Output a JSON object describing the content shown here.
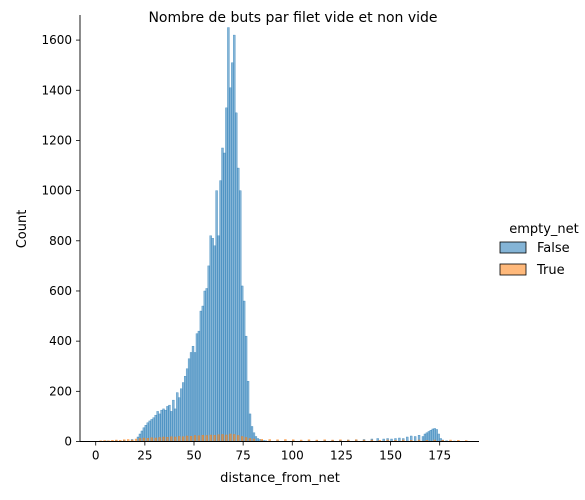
{
  "chart_data": {
    "type": "histogram",
    "title": "Nombre de buts par filet vide et non vide",
    "xlabel": "distance_from_net",
    "ylabel": "Count",
    "xlim": [
      -8,
      195
    ],
    "ylim": [
      0,
      1700
    ],
    "xticks": [
      0,
      25,
      50,
      75,
      100,
      125,
      150,
      175
    ],
    "yticks": [
      0,
      200,
      400,
      600,
      800,
      1000,
      1200,
      1400,
      1600
    ],
    "grid": false,
    "legend": {
      "title": "empty_net",
      "placement": "center-right",
      "entries": [
        "False",
        "True"
      ]
    },
    "colors": {
      "False": "#1f77b4",
      "True": "#ff7f0e",
      "opacity": 0.55
    },
    "bin_width": 1,
    "series": [
      {
        "name": "False",
        "bins": [
          {
            "x": 5,
            "y": 2
          },
          {
            "x": 10,
            "y": 3
          },
          {
            "x": 14,
            "y": 4
          },
          {
            "x": 18,
            "y": 8
          },
          {
            "x": 21,
            "y": 18
          },
          {
            "x": 22,
            "y": 30
          },
          {
            "x": 23,
            "y": 42
          },
          {
            "x": 24,
            "y": 55
          },
          {
            "x": 25,
            "y": 65
          },
          {
            "x": 26,
            "y": 75
          },
          {
            "x": 27,
            "y": 82
          },
          {
            "x": 28,
            "y": 88
          },
          {
            "x": 29,
            "y": 95
          },
          {
            "x": 30,
            "y": 105
          },
          {
            "x": 31,
            "y": 120
          },
          {
            "x": 32,
            "y": 110
          },
          {
            "x": 33,
            "y": 125
          },
          {
            "x": 34,
            "y": 130
          },
          {
            "x": 35,
            "y": 125
          },
          {
            "x": 36,
            "y": 140
          },
          {
            "x": 37,
            "y": 145
          },
          {
            "x": 38,
            "y": 120
          },
          {
            "x": 39,
            "y": 165
          },
          {
            "x": 40,
            "y": 130
          },
          {
            "x": 41,
            "y": 195
          },
          {
            "x": 42,
            "y": 175
          },
          {
            "x": 43,
            "y": 210
          },
          {
            "x": 44,
            "y": 235
          },
          {
            "x": 45,
            "y": 260
          },
          {
            "x": 46,
            "y": 290
          },
          {
            "x": 47,
            "y": 330
          },
          {
            "x": 48,
            "y": 355
          },
          {
            "x": 49,
            "y": 380
          },
          {
            "x": 50,
            "y": 355
          },
          {
            "x": 51,
            "y": 430
          },
          {
            "x": 52,
            "y": 440
          },
          {
            "x": 53,
            "y": 520
          },
          {
            "x": 54,
            "y": 540
          },
          {
            "x": 55,
            "y": 600
          },
          {
            "x": 56,
            "y": 610
          },
          {
            "x": 57,
            "y": 700
          },
          {
            "x": 58,
            "y": 820
          },
          {
            "x": 59,
            "y": 810
          },
          {
            "x": 60,
            "y": 780
          },
          {
            "x": 61,
            "y": 1000
          },
          {
            "x": 62,
            "y": 820
          },
          {
            "x": 63,
            "y": 1040
          },
          {
            "x": 64,
            "y": 1170
          },
          {
            "x": 65,
            "y": 1150
          },
          {
            "x": 66,
            "y": 1330
          },
          {
            "x": 67,
            "y": 1650
          },
          {
            "x": 68,
            "y": 1410
          },
          {
            "x": 69,
            "y": 1510
          },
          {
            "x": 70,
            "y": 1620
          },
          {
            "x": 71,
            "y": 1310
          },
          {
            "x": 72,
            "y": 1090
          },
          {
            "x": 73,
            "y": 1000
          },
          {
            "x": 74,
            "y": 620
          },
          {
            "x": 75,
            "y": 560
          },
          {
            "x": 76,
            "y": 420
          },
          {
            "x": 77,
            "y": 240
          },
          {
            "x": 78,
            "y": 110
          },
          {
            "x": 79,
            "y": 60
          },
          {
            "x": 80,
            "y": 35
          },
          {
            "x": 81,
            "y": 20
          },
          {
            "x": 82,
            "y": 12
          },
          {
            "x": 83,
            "y": 8
          },
          {
            "x": 84,
            "y": 5
          },
          {
            "x": 85,
            "y": 4
          },
          {
            "x": 86,
            "y": 3
          },
          {
            "x": 88,
            "y": 2
          },
          {
            "x": 92,
            "y": 3
          },
          {
            "x": 96,
            "y": 2
          },
          {
            "x": 100,
            "y": 3
          },
          {
            "x": 104,
            "y": 2
          },
          {
            "x": 108,
            "y": 3
          },
          {
            "x": 112,
            "y": 3
          },
          {
            "x": 116,
            "y": 4
          },
          {
            "x": 120,
            "y": 4
          },
          {
            "x": 124,
            "y": 5
          },
          {
            "x": 128,
            "y": 6
          },
          {
            "x": 132,
            "y": 7
          },
          {
            "x": 136,
            "y": 8
          },
          {
            "x": 140,
            "y": 10
          },
          {
            "x": 143,
            "y": 12
          },
          {
            "x": 146,
            "y": 10
          },
          {
            "x": 148,
            "y": 12
          },
          {
            "x": 150,
            "y": 10
          },
          {
            "x": 152,
            "y": 12
          },
          {
            "x": 154,
            "y": 14
          },
          {
            "x": 156,
            "y": 12
          },
          {
            "x": 158,
            "y": 18
          },
          {
            "x": 160,
            "y": 22
          },
          {
            "x": 162,
            "y": 20
          },
          {
            "x": 164,
            "y": 25
          },
          {
            "x": 166,
            "y": 20
          },
          {
            "x": 167,
            "y": 30
          },
          {
            "x": 168,
            "y": 35
          },
          {
            "x": 169,
            "y": 40
          },
          {
            "x": 170,
            "y": 45
          },
          {
            "x": 171,
            "y": 50
          },
          {
            "x": 172,
            "y": 52
          },
          {
            "x": 173,
            "y": 48
          },
          {
            "x": 174,
            "y": 30
          },
          {
            "x": 175,
            "y": 12
          },
          {
            "x": 176,
            "y": 6
          },
          {
            "x": 178,
            "y": 3
          },
          {
            "x": 182,
            "y": 2
          }
        ]
      },
      {
        "name": "True",
        "bins": [
          {
            "x": 2,
            "y": 3
          },
          {
            "x": 4,
            "y": 4
          },
          {
            "x": 6,
            "y": 3
          },
          {
            "x": 8,
            "y": 5
          },
          {
            "x": 10,
            "y": 6
          },
          {
            "x": 12,
            "y": 5
          },
          {
            "x": 14,
            "y": 7
          },
          {
            "x": 16,
            "y": 8
          },
          {
            "x": 18,
            "y": 6
          },
          {
            "x": 20,
            "y": 10
          },
          {
            "x": 22,
            "y": 12
          },
          {
            "x": 24,
            "y": 14
          },
          {
            "x": 26,
            "y": 13
          },
          {
            "x": 28,
            "y": 15
          },
          {
            "x": 30,
            "y": 14
          },
          {
            "x": 32,
            "y": 16
          },
          {
            "x": 34,
            "y": 18
          },
          {
            "x": 36,
            "y": 17
          },
          {
            "x": 38,
            "y": 19
          },
          {
            "x": 40,
            "y": 18
          },
          {
            "x": 42,
            "y": 20
          },
          {
            "x": 44,
            "y": 19
          },
          {
            "x": 46,
            "y": 22
          },
          {
            "x": 48,
            "y": 21
          },
          {
            "x": 50,
            "y": 24
          },
          {
            "x": 52,
            "y": 23
          },
          {
            "x": 54,
            "y": 25
          },
          {
            "x": 56,
            "y": 24
          },
          {
            "x": 58,
            "y": 26
          },
          {
            "x": 60,
            "y": 25
          },
          {
            "x": 62,
            "y": 27
          },
          {
            "x": 64,
            "y": 28
          },
          {
            "x": 66,
            "y": 26
          },
          {
            "x": 68,
            "y": 30
          },
          {
            "x": 70,
            "y": 28
          },
          {
            "x": 72,
            "y": 24
          },
          {
            "x": 74,
            "y": 20
          },
          {
            "x": 76,
            "y": 16
          },
          {
            "x": 78,
            "y": 12
          },
          {
            "x": 80,
            "y": 10
          },
          {
            "x": 84,
            "y": 9
          },
          {
            "x": 88,
            "y": 8
          },
          {
            "x": 92,
            "y": 7
          },
          {
            "x": 96,
            "y": 8
          },
          {
            "x": 100,
            "y": 7
          },
          {
            "x": 104,
            "y": 6
          },
          {
            "x": 108,
            "y": 7
          },
          {
            "x": 112,
            "y": 6
          },
          {
            "x": 116,
            "y": 7
          },
          {
            "x": 120,
            "y": 6
          },
          {
            "x": 124,
            "y": 7
          },
          {
            "x": 128,
            "y": 6
          },
          {
            "x": 132,
            "y": 7
          },
          {
            "x": 136,
            "y": 6
          },
          {
            "x": 140,
            "y": 6
          },
          {
            "x": 144,
            "y": 5
          },
          {
            "x": 148,
            "y": 6
          },
          {
            "x": 152,
            "y": 5
          },
          {
            "x": 156,
            "y": 6
          },
          {
            "x": 160,
            "y": 5
          },
          {
            "x": 164,
            "y": 6
          },
          {
            "x": 168,
            "y": 5
          },
          {
            "x": 172,
            "y": 6
          },
          {
            "x": 176,
            "y": 5
          },
          {
            "x": 180,
            "y": 6
          },
          {
            "x": 184,
            "y": 5
          },
          {
            "x": 188,
            "y": 4
          }
        ]
      }
    ]
  }
}
